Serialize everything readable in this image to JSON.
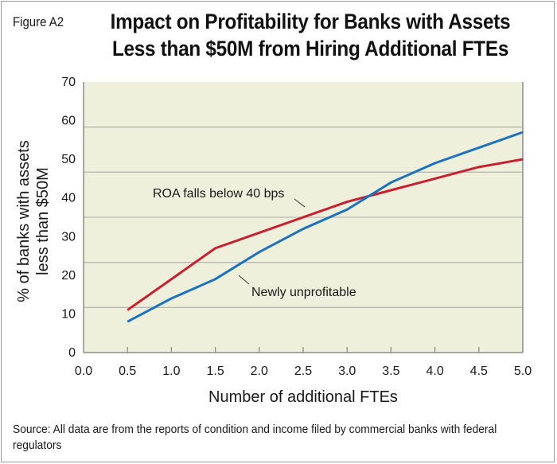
{
  "figure_label": "Figure A2",
  "title_lines": [
    "Impact on Profitability for Banks with Assets",
    "Less than $50M from Hiring Additional FTEs"
  ],
  "source_note": "Source: All data are from the reports of condition and income filed by commercial banks with federal regulators",
  "chart_data": {
    "type": "line",
    "title": "Impact on Profitability for Banks with Assets Less than $50M from Hiring Additional FTEs",
    "xlabel": "Number of additional FTEs",
    "ylabel_lines": [
      "% of banks with assets",
      "less than $50M"
    ],
    "ylabel": "% of banks with assets less than $50M",
    "xlim": [
      0,
      5
    ],
    "ylim": [
      0,
      70
    ],
    "x_ticks": [
      "0.0",
      "0.5",
      "1.0",
      "1.5",
      "2.0",
      "2.5",
      "3.0",
      "3.5",
      "4.0",
      "4.5",
      "5.0"
    ],
    "y_ticks": [
      "0",
      "10",
      "20",
      "30",
      "40",
      "50",
      "60",
      "70"
    ],
    "grid": "horizontal",
    "legend": "none (inline annotations)",
    "x": [
      0.5,
      1.0,
      1.5,
      2.0,
      2.5,
      3.0,
      3.5,
      4.0,
      4.5,
      5.0
    ],
    "series": [
      {
        "name": "ROA falls below 40 bps",
        "color": "#c8202f",
        "values": [
          11,
          19,
          27,
          31,
          35,
          39,
          42,
          45,
          48,
          50
        ]
      },
      {
        "name": "Newly unprofitable",
        "color": "#1d72bd",
        "values": [
          8,
          14,
          19,
          26,
          32,
          37,
          44,
          49,
          53,
          57
        ]
      }
    ],
    "annotations": [
      {
        "text": "ROA falls below 40 bps",
        "series": "ROA falls below 40 bps"
      },
      {
        "text": "Newly unprofitable",
        "series": "Newly unprofitable"
      }
    ],
    "colors": {
      "plot_background": "#eff0dc",
      "gridline": "#b9b9b0",
      "axis": "#8c8c8c"
    }
  }
}
